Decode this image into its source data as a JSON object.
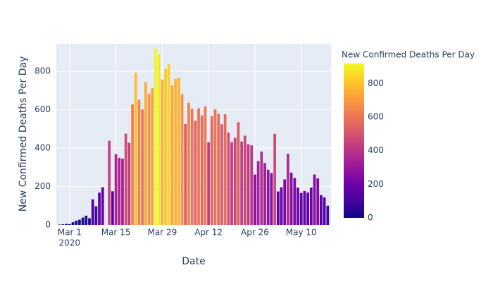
{
  "chart_data": {
    "type": "bar",
    "x_title": "Date",
    "y_title": "New Confirmed Deaths Per Day",
    "colorbar_title": "New Confirmed Deaths Per Day",
    "x": [
      "2020-02-27",
      "2020-02-28",
      "2020-02-29",
      "2020-03-01",
      "2020-03-02",
      "2020-03-03",
      "2020-03-04",
      "2020-03-05",
      "2020-03-06",
      "2020-03-07",
      "2020-03-08",
      "2020-03-09",
      "2020-03-10",
      "2020-03-11",
      "2020-03-12",
      "2020-03-13",
      "2020-03-14",
      "2020-03-15",
      "2020-03-16",
      "2020-03-17",
      "2020-03-18",
      "2020-03-19",
      "2020-03-20",
      "2020-03-21",
      "2020-03-22",
      "2020-03-23",
      "2020-03-24",
      "2020-03-25",
      "2020-03-26",
      "2020-03-27",
      "2020-03-28",
      "2020-03-29",
      "2020-03-30",
      "2020-03-31",
      "2020-04-01",
      "2020-04-02",
      "2020-04-03",
      "2020-04-04",
      "2020-04-05",
      "2020-04-06",
      "2020-04-07",
      "2020-04-08",
      "2020-04-09",
      "2020-04-10",
      "2020-04-11",
      "2020-04-12",
      "2020-04-13",
      "2020-04-14",
      "2020-04-15",
      "2020-04-16",
      "2020-04-17",
      "2020-04-18",
      "2020-04-19",
      "2020-04-20",
      "2020-04-21",
      "2020-04-22",
      "2020-04-23",
      "2020-04-24",
      "2020-04-25",
      "2020-04-26",
      "2020-04-27",
      "2020-04-28",
      "2020-04-29",
      "2020-04-30",
      "2020-05-01",
      "2020-05-02",
      "2020-05-03",
      "2020-05-04",
      "2020-05-05",
      "2020-05-06",
      "2020-05-07",
      "2020-05-08",
      "2020-05-09",
      "2020-05-10",
      "2020-05-11",
      "2020-05-12",
      "2020-05-13",
      "2020-05-14",
      "2020-05-15",
      "2020-05-16",
      "2020-05-17",
      "2020-05-18"
    ],
    "values": [
      2,
      3,
      5,
      4,
      14,
      22,
      27,
      38,
      48,
      35,
      133,
      97,
      168,
      196,
      0,
      438,
      175,
      368,
      349,
      345,
      475,
      427,
      627,
      793,
      651,
      601,
      743,
      683,
      712,
      919,
      889,
      756,
      812,
      837,
      727,
      760,
      766,
      681,
      525,
      636,
      604,
      542,
      607,
      570,
      617,
      431,
      566,
      601,
      578,
      524,
      576,
      481,
      431,
      453,
      535,
      434,
      464,
      420,
      414,
      262,
      332,
      382,
      322,
      287,
      270,
      474,
      174,
      196,
      237,
      370,
      272,
      244,
      194,
      166,
      176,
      168,
      194,
      262,
      242,
      155,
      143,
      100
    ],
    "xlim": [
      "2020-02-26",
      "2020-05-19"
    ],
    "xticks": [
      {
        "value": "2020-03-01",
        "label": "Mar 1"
      },
      {
        "value": "2020-03-15",
        "label": "Mar 15"
      },
      {
        "value": "2020-03-29",
        "label": "Mar 29"
      },
      {
        "value": "2020-04-12",
        "label": "Apr 12"
      },
      {
        "value": "2020-04-26",
        "label": "Apr 26"
      },
      {
        "value": "2020-05-10",
        "label": "May 10"
      }
    ],
    "x_year_label": "2020",
    "ylim": [
      0,
      943
    ],
    "yticks": [
      0,
      200,
      400,
      600,
      800
    ],
    "grid": true,
    "clim": [
      0,
      919
    ],
    "cticks": [
      0,
      200,
      400,
      600,
      800
    ],
    "colorscale": [
      "#0d0887",
      "#46039f",
      "#7201a8",
      "#9c179e",
      "#bd3786",
      "#d8576b",
      "#ed7953",
      "#fb9f3a",
      "#fdca26",
      "#f0f921"
    ]
  }
}
